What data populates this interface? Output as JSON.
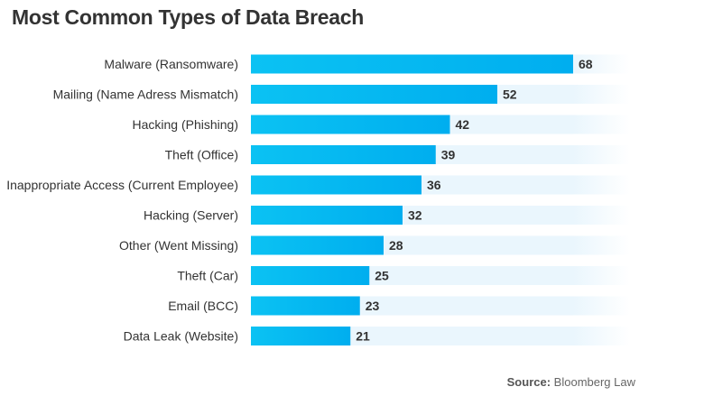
{
  "chart_data": {
    "type": "bar",
    "orientation": "horizontal",
    "title": "Most Common Types of Data Breach",
    "categories": [
      "Malware (Ransomware)",
      "Mailing (Name Adress Mismatch)",
      "Hacking (Phishing)",
      "Theft (Office)",
      "Inappropriate Access (Current Employee)",
      "Hacking (Server)",
      "Other (Went Missing)",
      "Theft (Car)",
      "Email (BCC)",
      "Data Leak (Website)"
    ],
    "values": [
      68,
      52,
      42,
      39,
      36,
      32,
      28,
      25,
      23,
      21
    ],
    "xlim": [
      0,
      80
    ],
    "grid": false,
    "data_labels": true,
    "colors": {
      "bar_start": "#0bc2f3",
      "bar_end": "#00aeef",
      "track": "#eaf6fd",
      "text": "#333333"
    }
  },
  "source": {
    "label": "Source:",
    "text": "Bloomberg Law"
  }
}
